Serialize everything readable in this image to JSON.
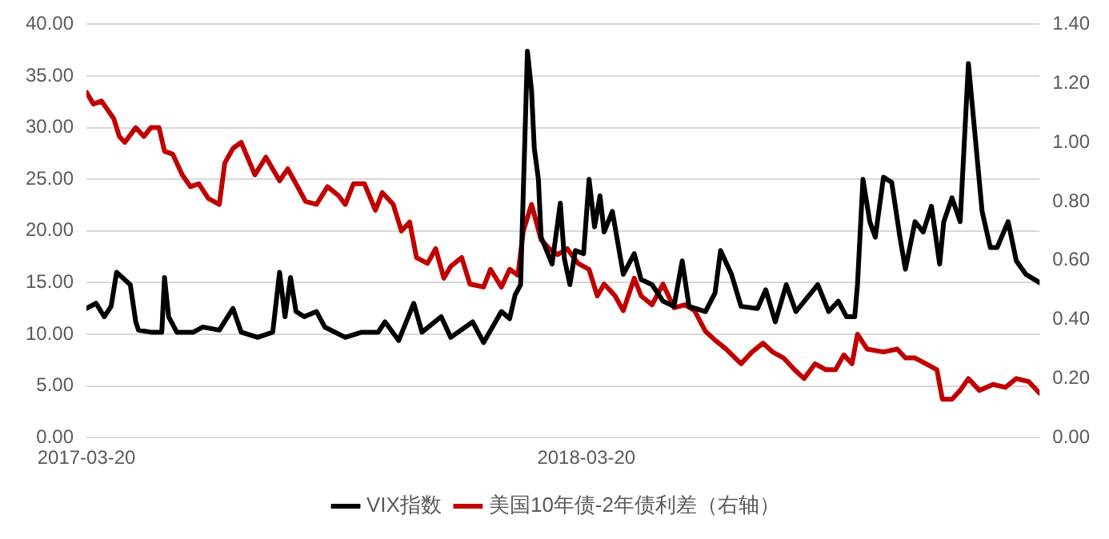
{
  "chart_data": {
    "type": "line",
    "xlim": [
      "2017-03-20",
      "2019-02-14"
    ],
    "xticks": [
      "2017-03-20",
      "2018-03-20"
    ],
    "ylim": [
      0,
      40
    ],
    "yticks": [
      {
        "value": 0,
        "label": "0.00"
      },
      {
        "value": 5,
        "label": "5.00"
      },
      {
        "value": 10,
        "label": "10.00"
      },
      {
        "value": 15,
        "label": "15.00"
      },
      {
        "value": 20,
        "label": "20.00"
      },
      {
        "value": 25,
        "label": "25.00"
      },
      {
        "value": 30,
        "label": "30.00"
      },
      {
        "value": 35,
        "label": "35.00"
      },
      {
        "value": 40,
        "label": "40.00"
      }
    ],
    "y2lim": [
      0,
      1.4
    ],
    "y2ticks": [
      {
        "value": 0,
        "label": "0.00"
      },
      {
        "value": 0.2,
        "label": "0.20"
      },
      {
        "value": 0.4,
        "label": "0.40"
      },
      {
        "value": 0.6,
        "label": "0.60"
      },
      {
        "value": 0.8,
        "label": "0.80"
      },
      {
        "value": 1,
        "label": "1.00"
      },
      {
        "value": 1.2,
        "label": "1.20"
      },
      {
        "value": 1.4,
        "label": "1.40"
      }
    ],
    "grid": "y",
    "legend": "bottom",
    "marker": "none",
    "line_style": "solid",
    "series": [
      {
        "name": "VIX指数",
        "color": "#000000",
        "x": [
          "2017-03-20",
          "2017-03-27",
          "2017-04-02",
          "2017-04-07",
          "2017-04-11",
          "2017-04-21",
          "2017-04-25",
          "2017-04-27",
          "2017-05-06",
          "2017-05-14",
          "2017-05-16",
          "2017-05-19",
          "2017-05-25",
          "2017-06-06",
          "2017-06-13",
          "2017-06-25",
          "2017-07-05",
          "2017-07-11",
          "2017-07-23",
          "2017-08-03",
          "2017-08-08",
          "2017-08-12",
          "2017-08-16",
          "2017-08-20",
          "2017-08-26",
          "2017-09-04",
          "2017-09-10",
          "2017-09-25",
          "2017-10-07",
          "2017-10-19",
          "2017-10-24",
          "2017-11-03",
          "2017-11-14",
          "2017-11-20",
          "2017-12-04",
          "2017-12-11",
          "2017-12-27",
          "2018-01-04",
          "2018-01-17",
          "2018-01-23",
          "2018-01-27",
          "2018-01-31",
          "2018-02-05",
          "2018-02-08",
          "2018-02-10",
          "2018-02-13",
          "2018-02-15",
          "2018-02-23",
          "2018-03-01",
          "2018-03-04",
          "2018-03-08",
          "2018-03-12",
          "2018-03-18",
          "2018-03-22",
          "2018-03-26",
          "2018-03-30",
          "2018-04-02",
          "2018-04-08",
          "2018-04-16",
          "2018-04-24",
          "2018-04-29",
          "2018-05-07",
          "2018-05-15",
          "2018-05-23",
          "2018-05-29",
          "2018-06-03",
          "2018-06-15",
          "2018-06-22",
          "2018-06-26",
          "2018-07-04",
          "2018-07-11",
          "2018-07-23",
          "2018-07-29",
          "2018-08-05",
          "2018-08-13",
          "2018-08-20",
          "2018-09-05",
          "2018-09-13",
          "2018-09-20",
          "2018-09-26",
          "2018-10-02",
          "2018-10-04",
          "2018-10-08",
          "2018-10-13",
          "2018-10-17",
          "2018-10-23",
          "2018-10-29",
          "2018-11-04",
          "2018-11-08",
          "2018-11-15",
          "2018-11-21",
          "2018-11-27",
          "2018-12-03",
          "2018-12-06",
          "2018-12-12",
          "2018-12-18",
          "2018-12-24",
          "2019-01-03",
          "2019-01-09",
          "2019-01-14",
          "2019-01-22",
          "2019-01-28",
          "2019-02-04",
          "2019-02-14"
        ],
        "values": [
          12.5,
          13.0,
          11.7,
          12.7,
          16.0,
          14.8,
          11.2,
          10.4,
          10.2,
          10.2,
          15.5,
          11.7,
          10.2,
          10.2,
          10.7,
          10.4,
          12.5,
          10.2,
          9.7,
          10.2,
          16.0,
          11.7,
          15.5,
          12.2,
          11.7,
          12.2,
          10.7,
          9.7,
          10.2,
          10.2,
          11.2,
          9.4,
          13.0,
          10.2,
          11.7,
          9.7,
          11.2,
          9.2,
          12.2,
          11.5,
          13.8,
          14.8,
          37.4,
          33.6,
          28.0,
          25.0,
          19.4,
          16.8,
          22.7,
          17.3,
          14.8,
          18.1,
          17.8,
          25.0,
          20.4,
          23.4,
          19.9,
          21.9,
          15.8,
          17.8,
          15.3,
          14.8,
          13.2,
          12.7,
          17.1,
          12.7,
          12.2,
          14.0,
          18.1,
          15.8,
          12.7,
          12.5,
          14.3,
          11.2,
          14.8,
          12.2,
          14.8,
          12.2,
          13.2,
          11.7,
          11.7,
          14.8,
          25.0,
          20.9,
          19.4,
          25.2,
          24.7,
          19.4,
          16.3,
          20.9,
          19.9,
          22.4,
          16.8,
          20.9,
          23.2,
          20.9,
          36.2,
          21.9,
          18.4,
          18.4,
          20.9,
          17.1,
          15.8,
          15.0
        ]
      },
      {
        "name": "美国10年债-2年债利差（右轴）",
        "color": "#c00000",
        "axis": "y2",
        "x": [
          "2017-03-20",
          "2017-03-25",
          "2017-03-31",
          "2017-04-09",
          "2017-04-13",
          "2017-04-17",
          "2017-04-25",
          "2017-05-01",
          "2017-05-06",
          "2017-05-12",
          "2017-05-16",
          "2017-05-22",
          "2017-05-29",
          "2017-06-04",
          "2017-06-10",
          "2017-06-17",
          "2017-06-25",
          "2017-06-29",
          "2017-07-05",
          "2017-07-11",
          "2017-07-21",
          "2017-07-29",
          "2017-08-03",
          "2017-08-08",
          "2017-08-14",
          "2017-08-20",
          "2017-08-27",
          "2017-09-04",
          "2017-09-12",
          "2017-09-20",
          "2017-09-25",
          "2017-10-01",
          "2017-10-09",
          "2017-10-17",
          "2017-10-22",
          "2017-10-30",
          "2017-11-05",
          "2017-11-11",
          "2017-11-16",
          "2017-11-24",
          "2017-11-30",
          "2017-12-06",
          "2017-12-11",
          "2017-12-19",
          "2017-12-25",
          "2018-01-04",
          "2018-01-09",
          "2018-01-17",
          "2018-01-23",
          "2018-01-29",
          "2018-02-02",
          "2018-02-08",
          "2018-02-15",
          "2018-02-21",
          "2018-02-27",
          "2018-03-06",
          "2018-03-14",
          "2018-03-22",
          "2018-03-28",
          "2018-04-02",
          "2018-04-10",
          "2018-04-16",
          "2018-04-24",
          "2018-04-29",
          "2018-05-07",
          "2018-05-15",
          "2018-05-23",
          "2018-05-31",
          "2018-06-07",
          "2018-06-15",
          "2018-06-22",
          "2018-06-30",
          "2018-07-11",
          "2018-07-19",
          "2018-07-27",
          "2018-08-03",
          "2018-08-11",
          "2018-08-19",
          "2018-08-26",
          "2018-09-03",
          "2018-09-11",
          "2018-09-18",
          "2018-09-24",
          "2018-09-30",
          "2018-10-04",
          "2018-10-11",
          "2018-10-23",
          "2018-11-02",
          "2018-11-08",
          "2018-11-15",
          "2018-11-23",
          "2018-12-01",
          "2018-12-05",
          "2018-12-12",
          "2018-12-18",
          "2018-12-24",
          "2019-01-01",
          "2019-01-11",
          "2019-01-20",
          "2019-01-28",
          "2019-02-06",
          "2019-02-14"
        ],
        "values": [
          1.17,
          1.13,
          1.14,
          1.08,
          1.02,
          1.0,
          1.05,
          1.02,
          1.05,
          1.05,
          0.97,
          0.96,
          0.89,
          0.85,
          0.86,
          0.81,
          0.79,
          0.93,
          0.98,
          1.0,
          0.89,
          0.95,
          0.91,
          0.87,
          0.91,
          0.86,
          0.8,
          0.79,
          0.85,
          0.82,
          0.79,
          0.86,
          0.86,
          0.77,
          0.83,
          0.79,
          0.7,
          0.73,
          0.61,
          0.59,
          0.64,
          0.54,
          0.58,
          0.61,
          0.52,
          0.51,
          0.57,
          0.51,
          0.57,
          0.55,
          0.7,
          0.79,
          0.67,
          0.64,
          0.62,
          0.64,
          0.59,
          0.57,
          0.48,
          0.52,
          0.48,
          0.43,
          0.54,
          0.48,
          0.45,
          0.52,
          0.44,
          0.45,
          0.43,
          0.36,
          0.33,
          0.3,
          0.25,
          0.29,
          0.32,
          0.29,
          0.27,
          0.23,
          0.2,
          0.25,
          0.23,
          0.23,
          0.28,
          0.25,
          0.35,
          0.3,
          0.29,
          0.3,
          0.27,
          0.27,
          0.25,
          0.23,
          0.13,
          0.13,
          0.16,
          0.2,
          0.16,
          0.18,
          0.17,
          0.2,
          0.19,
          0.15
        ]
      }
    ]
  }
}
